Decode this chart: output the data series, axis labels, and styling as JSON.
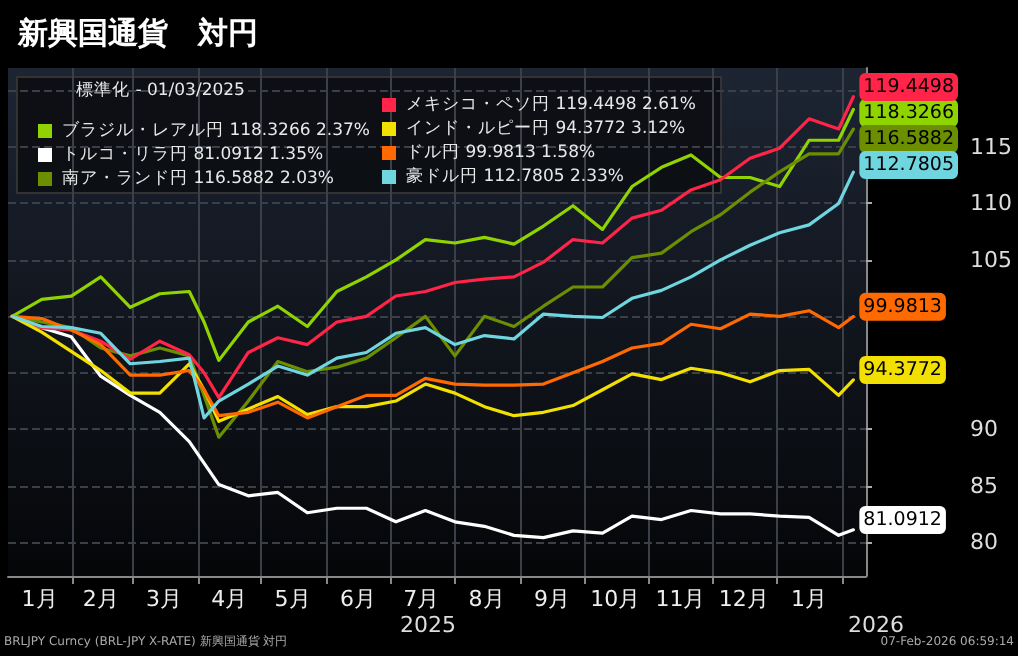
{
  "chart_data": {
    "type": "line",
    "title": "新興国通貨　対円",
    "legend_title": "標準化 - 01/03/2025",
    "legend": "top left",
    "grid": true,
    "marker": "none",
    "line_style": "solid",
    "x": [
      "2025-01-03",
      "2025-01-17",
      "2025-01-31",
      "2025-02-14",
      "2025-02-28",
      "2025-03-14",
      "2025-03-28",
      "2025-04-04",
      "2025-04-11",
      "2025-04-25",
      "2025-05-09",
      "2025-05-23",
      "2025-06-06",
      "2025-06-20",
      "2025-07-04",
      "2025-07-18",
      "2025-08-01",
      "2025-08-15",
      "2025-08-29",
      "2025-09-12",
      "2025-09-26",
      "2025-10-10",
      "2025-10-24",
      "2025-11-07",
      "2025-11-21",
      "2025-12-05",
      "2025-12-19",
      "2026-01-02",
      "2026-01-16",
      "2026-01-30",
      "2026-02-06"
    ],
    "xlim": [
      "2025-01-01",
      "2026-02-12"
    ],
    "xticks": [
      {
        "value": "2025-01-16",
        "label": "1月"
      },
      {
        "value": "2025-02-01",
        "label": null
      },
      {
        "value": "2025-02-14",
        "label": "2月"
      },
      {
        "value": "2025-03-01",
        "label": null
      },
      {
        "value": "2025-03-16",
        "label": "3月"
      },
      {
        "value": "2025-04-01",
        "label": null
      },
      {
        "value": "2025-04-16",
        "label": "4月"
      },
      {
        "value": "2025-05-01",
        "label": null
      },
      {
        "value": "2025-05-16",
        "label": "5月"
      },
      {
        "value": "2025-06-01",
        "label": null
      },
      {
        "value": "2025-06-16",
        "label": "6月"
      },
      {
        "value": "2025-07-01",
        "label": null
      },
      {
        "value": "2025-07-16",
        "label": "7月"
      },
      {
        "value": "2025-08-01",
        "label": null
      },
      {
        "value": "2025-08-16",
        "label": "8月"
      },
      {
        "value": "2025-09-01",
        "label": null
      },
      {
        "value": "2025-09-16",
        "label": "9月"
      },
      {
        "value": "2025-10-01",
        "label": null
      },
      {
        "value": "2025-10-16",
        "label": "10月"
      },
      {
        "value": "2025-11-01",
        "label": null
      },
      {
        "value": "2025-11-16",
        "label": "11月"
      },
      {
        "value": "2025-12-01",
        "label": null
      },
      {
        "value": "2025-12-16",
        "label": "12月"
      },
      {
        "value": "2026-01-01",
        "label": null
      },
      {
        "value": "2026-01-16",
        "label": "1月"
      },
      {
        "value": "2026-02-01",
        "label": null
      }
    ],
    "ylim": [
      77,
      122
    ],
    "yticks": [
      80,
      85,
      90,
      {
        "value": 95,
        "label": null
      },
      {
        "value": 100,
        "label": null
      },
      105,
      110,
      115,
      {
        "value": 120,
        "label": null
      }
    ],
    "series": [
      {
        "name": "ブラジル・レアル円 118.3266 2.37%",
        "color": "#8fd400",
        "values": [
          100,
          101.5,
          101.8,
          103.5,
          100.8,
          102,
          102.2,
          99.5,
          96.1,
          99.5,
          100.9,
          99.1,
          102.2,
          103.5,
          105,
          106.8,
          106.5,
          107,
          106.4,
          108,
          109.8,
          107.7,
          111.5,
          113.2,
          114.3,
          112.3,
          112.3,
          111.5,
          115.6,
          115.6,
          118.3266
        ],
        "value_labels": [
          null,
          null,
          null,
          null,
          null,
          null,
          null,
          null,
          null,
          null,
          null,
          null,
          null,
          null,
          null,
          null,
          null,
          null,
          null,
          null,
          null,
          null,
          null,
          null,
          null,
          null,
          null,
          null,
          null,
          null,
          "118.3266"
        ]
      },
      {
        "name": "トルコ・リラ円 81.0912 1.35%",
        "color": "#ffffff",
        "values": [
          100,
          99,
          98.2,
          94.7,
          93,
          91.5,
          88.9,
          87,
          85.1,
          84.1,
          84.4,
          82.6,
          83,
          83,
          81.8,
          82.8,
          81.8,
          81.4,
          80.6,
          80.4,
          81,
          80.8,
          82.3,
          82,
          82.8,
          82.5,
          82.5,
          82.3,
          82.2,
          80.6,
          81.0912
        ],
        "value_labels": [
          null,
          null,
          null,
          null,
          null,
          null,
          null,
          null,
          null,
          null,
          null,
          null,
          null,
          null,
          null,
          null,
          null,
          null,
          null,
          null,
          null,
          null,
          null,
          null,
          null,
          null,
          null,
          null,
          null,
          null,
          "81.0912"
        ]
      },
      {
        "name": "南ア・ランド円 116.5882 2.03%",
        "color": "#6b8f00",
        "values": [
          100,
          99.5,
          99,
          97.2,
          96.5,
          97.2,
          96.5,
          93,
          89.3,
          92.5,
          96,
          95.1,
          95.5,
          96.3,
          98.1,
          100,
          96.5,
          100,
          99.1,
          100.9,
          102.6,
          102.6,
          105.2,
          105.6,
          107.5,
          109,
          111,
          112.8,
          114.4,
          114.4,
          116.5882
        ],
        "value_labels": [
          null,
          null,
          null,
          null,
          null,
          null,
          null,
          null,
          null,
          null,
          null,
          null,
          null,
          null,
          null,
          null,
          null,
          null,
          null,
          null,
          null,
          null,
          null,
          null,
          null,
          null,
          null,
          null,
          null,
          null,
          "116.5882"
        ]
      },
      {
        "name": "メキシコ・ペソ円 119.4498 2.61%",
        "color": "#ff2448",
        "values": [
          100,
          99,
          98.8,
          97.8,
          96.2,
          97.8,
          96.6,
          95,
          92.8,
          96.8,
          98.1,
          97.5,
          99.5,
          100,
          101.8,
          102.2,
          103,
          103.3,
          103.5,
          104.8,
          106.8,
          106.5,
          108.7,
          109.4,
          111.2,
          112.1,
          114,
          114.9,
          117.5,
          116.6,
          119.4498
        ],
        "value_labels": [
          null,
          null,
          null,
          null,
          null,
          null,
          null,
          null,
          null,
          null,
          null,
          null,
          null,
          null,
          null,
          null,
          null,
          null,
          null,
          null,
          null,
          null,
          null,
          null,
          null,
          null,
          null,
          null,
          null,
          null,
          "119.4498"
        ]
      },
      {
        "name": "インド・ルピー円 94.3772 3.12%",
        "color": "#f2e000",
        "values": [
          100,
          98.6,
          96.9,
          95.2,
          93.2,
          93.2,
          95.8,
          93.5,
          90.7,
          91.8,
          92.9,
          91.3,
          92,
          92,
          92.5,
          94,
          93.2,
          92,
          91.2,
          91.5,
          92.1,
          93.5,
          94.9,
          94.4,
          95.4,
          95,
          94.2,
          95.2,
          95.3,
          93,
          94.3772
        ],
        "value_labels": [
          null,
          null,
          null,
          null,
          null,
          null,
          null,
          null,
          null,
          null,
          null,
          null,
          null,
          null,
          null,
          null,
          null,
          null,
          null,
          null,
          null,
          null,
          null,
          null,
          null,
          null,
          null,
          null,
          null,
          null,
          "94.3772"
        ]
      },
      {
        "name": "ドル円 99.9813 1.58%",
        "color": "#ff6a00",
        "values": [
          100,
          99.8,
          98.8,
          97.5,
          94.8,
          94.8,
          95.2,
          93.5,
          91.2,
          91.5,
          92.4,
          91,
          92,
          93,
          93,
          94.5,
          94,
          93.9,
          93.9,
          94,
          95,
          96,
          97.2,
          97.6,
          99.3,
          98.9,
          100.2,
          100,
          100.5,
          99,
          99.9813
        ],
        "value_labels": [
          null,
          null,
          null,
          null,
          null,
          null,
          null,
          null,
          null,
          null,
          null,
          null,
          null,
          null,
          null,
          null,
          null,
          null,
          null,
          null,
          null,
          null,
          null,
          null,
          null,
          null,
          null,
          null,
          null,
          null,
          "99.9813"
        ]
      },
      {
        "name": "豪ドル円 112.7805 2.33%",
        "color": "#6fd6e0",
        "values": [
          100,
          99.1,
          99,
          98.5,
          95.8,
          96,
          96.3,
          91,
          92.5,
          94,
          95.6,
          94.8,
          96.3,
          96.8,
          98.5,
          99,
          97.5,
          98.3,
          98,
          100.2,
          100,
          99.9,
          101.6,
          102.3,
          103.5,
          105,
          106.3,
          107.4,
          108.1,
          110,
          112.7805
        ],
        "value_labels": [
          null,
          null,
          null,
          null,
          null,
          null,
          null,
          null,
          null,
          null,
          null,
          null,
          null,
          null,
          null,
          null,
          null,
          null,
          null,
          null,
          null,
          null,
          null,
          null,
          null,
          null,
          null,
          null,
          null,
          null,
          "112.7805"
        ]
      }
    ],
    "annotations": [
      "2025",
      "2026",
      "BRLJPY Curncy (BRL-JPY X-RATE) 新興国通貨 対円",
      "07-Feb-2026 06:59:14"
    ]
  }
}
